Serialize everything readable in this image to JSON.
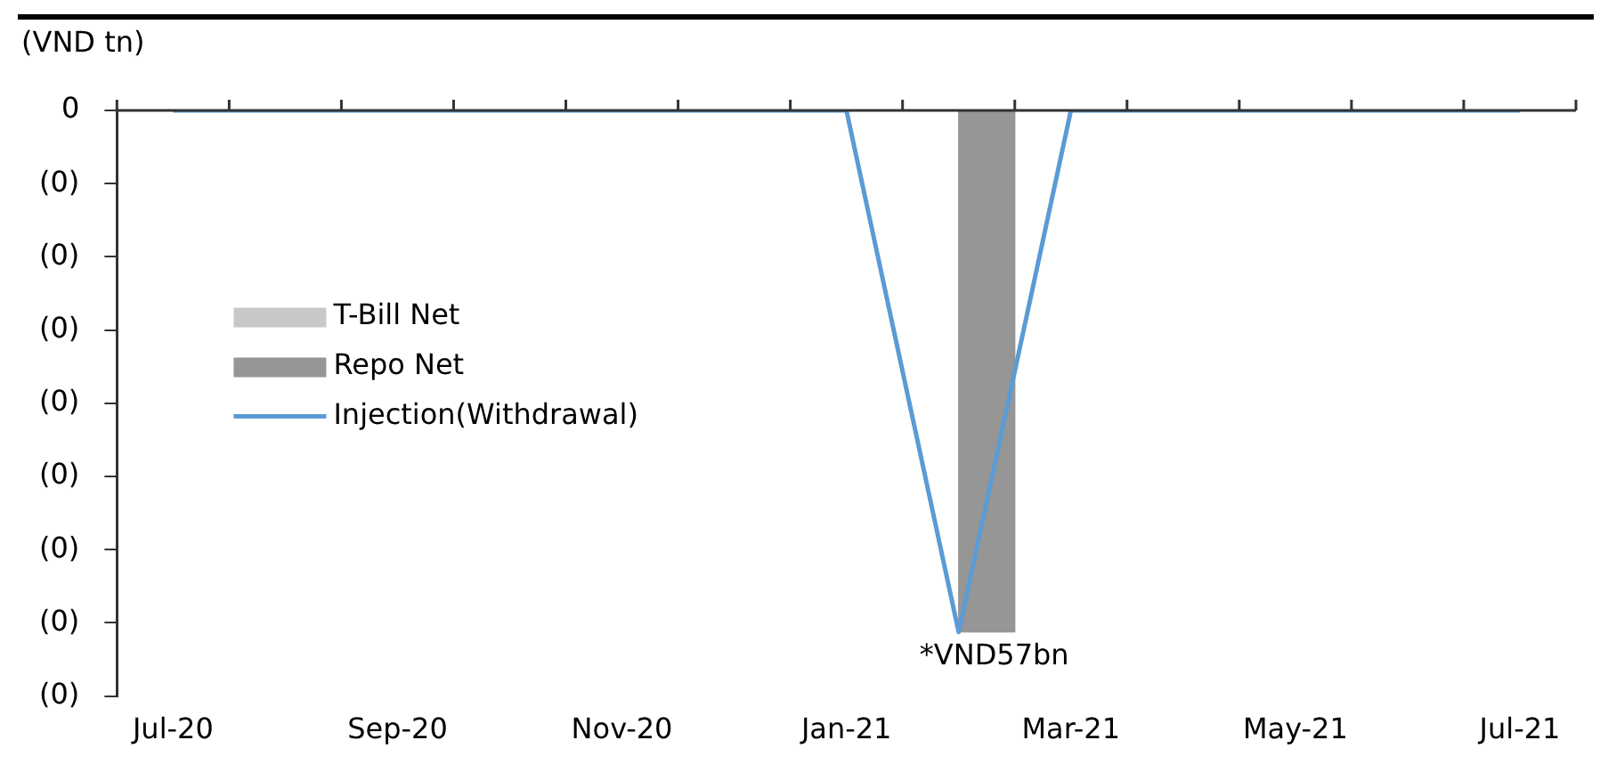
{
  "chart_data": {
    "type": "bar",
    "ylabel": "(VND tn)",
    "categories": [
      "Jul-20",
      null,
      "Sep-20",
      null,
      "Nov-20",
      null,
      "Jan-21",
      null,
      "Mar-21",
      null,
      "May-21",
      null,
      "Jul-21"
    ],
    "series": [
      {
        "name": "T-Bill Net",
        "color": "#c8c8c8",
        "values": [
          0,
          0,
          0,
          0,
          0,
          0,
          0,
          0,
          0,
          0,
          0,
          0,
          0
        ]
      },
      {
        "name": "Repo Net",
        "color": "#969696",
        "values": [
          0,
          0,
          0,
          0,
          0,
          0,
          0,
          -0.057,
          0,
          0,
          0,
          0,
          0
        ]
      },
      {
        "name": "Injection(Withdrawal)",
        "type": "line",
        "color": "#5b9bd5",
        "values": [
          0,
          0,
          0,
          0,
          0,
          0,
          0,
          -0.057,
          0,
          0,
          0,
          0,
          0
        ]
      }
    ],
    "ylim": [
      -0.064,
      0
    ],
    "yticks": [
      0,
      {
        "value": -0.008,
        "label": "(0)"
      },
      {
        "value": -0.016,
        "label": "(0)"
      },
      {
        "value": -0.024,
        "label": "(0)"
      },
      {
        "value": -0.032,
        "label": "(0)"
      },
      {
        "value": -0.04,
        "label": "(0)"
      },
      {
        "value": -0.048,
        "label": "(0)"
      },
      {
        "value": -0.056,
        "label": "(0)"
      },
      {
        "value": -0.064,
        "label": "(0)"
      }
    ],
    "annotations": [
      "*VND57bn"
    ],
    "legend": "top left",
    "grid": false,
    "line_style": "solid",
    "marker": "none"
  }
}
